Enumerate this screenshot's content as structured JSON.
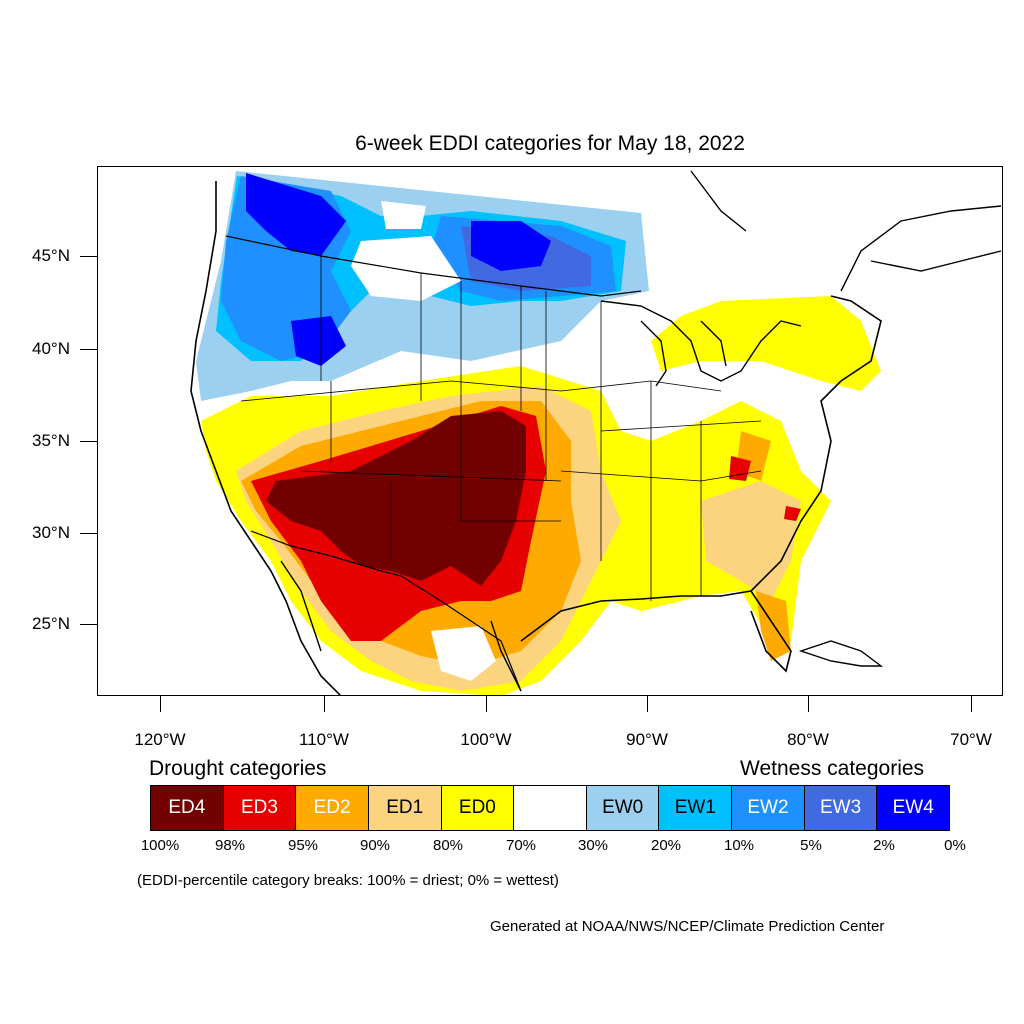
{
  "title": "6-week EDDI categories for May 18, 2022",
  "latitude_labels": [
    "45°N",
    "40°N",
    "35°N",
    "30°N",
    "25°N"
  ],
  "longitude_labels": [
    "120°W",
    "110°W",
    "100°W",
    "90°W",
    "80°W",
    "70°W"
  ],
  "legend": {
    "drought_heading": "Drought categories",
    "wetness_heading": "Wetness categories",
    "categories": [
      {
        "label": "ED4",
        "color": "#730000",
        "text_color": "#ffffff"
      },
      {
        "label": "ED3",
        "color": "#e60000",
        "text_color": "#ffffff"
      },
      {
        "label": "ED2",
        "color": "#ffaa00",
        "text_color": "#ffffff"
      },
      {
        "label": "ED1",
        "color": "#fcd37f",
        "text_color": "#000000"
      },
      {
        "label": "ED0",
        "color": "#ffff00",
        "text_color": "#000000"
      },
      {
        "label": "",
        "color": "#ffffff",
        "text_color": "#000000"
      },
      {
        "label": "EW0",
        "color": "#9cd0f0",
        "text_color": "#000000"
      },
      {
        "label": "EW1",
        "color": "#00c0ff",
        "text_color": "#000000"
      },
      {
        "label": "EW2",
        "color": "#1e90ff",
        "text_color": "#ffffff"
      },
      {
        "label": "EW3",
        "color": "#4169e1",
        "text_color": "#ffffff"
      },
      {
        "label": "EW4",
        "color": "#0000ff",
        "text_color": "#ffffff"
      }
    ],
    "percentile_breaks": [
      "100%",
      "98%",
      "95%",
      "90%",
      "80%",
      "70%",
      "30%",
      "20%",
      "10%",
      "5%",
      "2%",
      "0%"
    ]
  },
  "breaks_note": "(EDDI-percentile category breaks: 100% = driest; 0% = wettest)",
  "credit": "Generated at NOAA/NWS/NCEP/Climate Prediction Center"
}
